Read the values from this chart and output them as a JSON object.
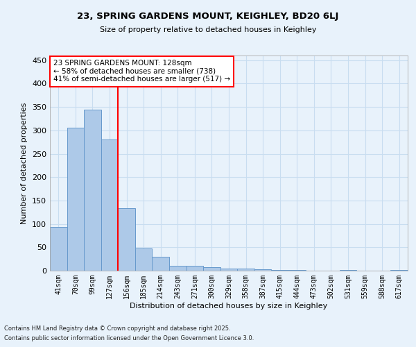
{
  "title1": "23, SPRING GARDENS MOUNT, KEIGHLEY, BD20 6LJ",
  "title2": "Size of property relative to detached houses in Keighley",
  "xlabel": "Distribution of detached houses by size in Keighley",
  "ylabel": "Number of detached properties",
  "categories": [
    "41sqm",
    "70sqm",
    "99sqm",
    "127sqm",
    "156sqm",
    "185sqm",
    "214sqm",
    "243sqm",
    "271sqm",
    "300sqm",
    "329sqm",
    "358sqm",
    "387sqm",
    "415sqm",
    "444sqm",
    "473sqm",
    "502sqm",
    "531sqm",
    "559sqm",
    "588sqm",
    "617sqm"
  ],
  "values": [
    93,
    305,
    344,
    281,
    134,
    47,
    30,
    10,
    10,
    8,
    5,
    5,
    3,
    1,
    1,
    0,
    0,
    2,
    0,
    0,
    2
  ],
  "bar_color": "#adc9e8",
  "bar_edge_color": "#6699cc",
  "grid_color": "#c8ddf0",
  "background_color": "#e8f2fb",
  "vline_index": 3,
  "vline_color": "red",
  "annotation_text": "23 SPRING GARDENS MOUNT: 128sqm\n← 58% of detached houses are smaller (738)\n41% of semi-detached houses are larger (517) →",
  "annotation_box_color": "white",
  "annotation_border_color": "red",
  "ylim": [
    0,
    460
  ],
  "yticks": [
    0,
    50,
    100,
    150,
    200,
    250,
    300,
    350,
    400,
    450
  ],
  "footer1": "Contains HM Land Registry data © Crown copyright and database right 2025.",
  "footer2": "Contains public sector information licensed under the Open Government Licence 3.0."
}
